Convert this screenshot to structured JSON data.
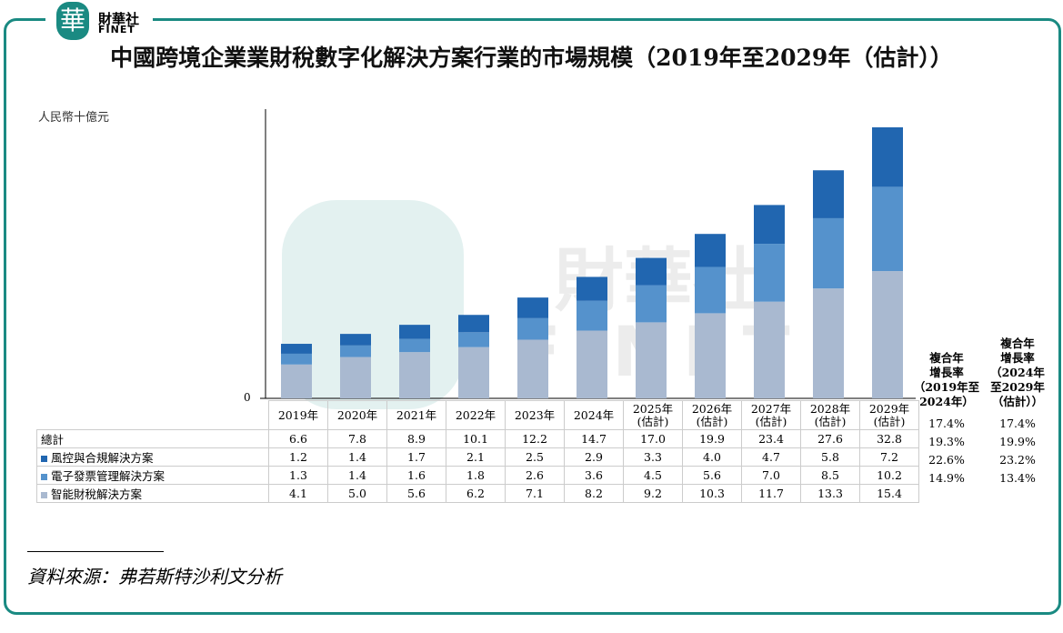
{
  "logo": {
    "mark": "華",
    "cn": "財華社",
    "en": "FINET"
  },
  "watermark": {
    "cn": "財華社",
    "en": "FINET"
  },
  "colors": {
    "frame": "#1a8a82",
    "risk": "#2166b0",
    "invoice": "#5592cc",
    "tax": "#a9b9d0"
  },
  "chart_data": {
    "type": "bar",
    "stacked": true,
    "title": "中國跨境企業業財稅數字化解決方案行業的市場規模（2019年至2029年（估計））",
    "ylabel": "人民幣十億元",
    "y_tick": "0",
    "ylim": [
      0,
      32.8
    ],
    "categories": [
      "2019年",
      "2020年",
      "2021年",
      "2022年",
      "2023年",
      "2024年",
      "2025年\n(估計)",
      "2026年\n(估計)",
      "2027年\n(估計)",
      "2028年\n(估計)",
      "2029年\n(估計)"
    ],
    "total": {
      "name": "總計",
      "values": [
        "6.6",
        "7.8",
        "8.9",
        "10.1",
        "12.2",
        "14.7",
        "17.0",
        "19.9",
        "23.4",
        "27.6",
        "32.8"
      ]
    },
    "series": [
      {
        "name": "風控與合規解決方案",
        "color": "#2166b0",
        "values": [
          1.2,
          1.4,
          1.7,
          2.1,
          2.5,
          2.9,
          3.3,
          4.0,
          4.7,
          5.8,
          7.2
        ]
      },
      {
        "name": "電子發票管理解決方案",
        "color": "#5592cc",
        "values": [
          1.3,
          1.4,
          1.6,
          1.8,
          2.6,
          3.6,
          4.5,
          5.6,
          7.0,
          8.5,
          10.2
        ]
      },
      {
        "name": "智能財稅解決方案",
        "color": "#a9b9d0",
        "values": [
          4.1,
          5.0,
          5.6,
          6.2,
          7.1,
          8.2,
          9.2,
          10.3,
          11.7,
          13.3,
          15.4
        ]
      }
    ],
    "cagr": {
      "headers": [
        "複合年\n增長率\n（2019年至\n2024年）",
        "複合年\n增長率\n（2024年\n至2029年\n（估計））"
      ],
      "rows": [
        [
          "17.4%",
          "17.4%"
        ],
        [
          "19.3%",
          "19.9%"
        ],
        [
          "22.6%",
          "23.2%"
        ],
        [
          "14.9%",
          "13.4%"
        ]
      ]
    }
  },
  "source": "資料來源：弗若斯特沙利文分析"
}
